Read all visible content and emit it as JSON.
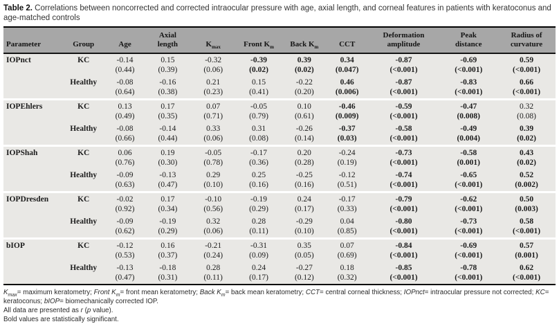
{
  "title": {
    "label": "Table 2.",
    "text": " Correlations between noncorrected and corrected intraocular pressure with age, axial length, and corneal features in patients with keratoconus and age-matched controls"
  },
  "colors": {
    "header_bg": "#a7a7a7",
    "row_bg": "#e9e8e5",
    "border": "#000000",
    "group_separator": "#ffffff"
  },
  "table": {
    "columns": [
      {
        "lines": [
          "Parameter"
        ],
        "sub": ""
      },
      {
        "lines": [
          "Group"
        ],
        "sub": ""
      },
      {
        "lines": [
          "Age"
        ],
        "sub": ""
      },
      {
        "lines": [
          "Axial",
          "length"
        ],
        "sub": ""
      },
      {
        "lines": [
          "K"
        ],
        "sub": "max"
      },
      {
        "lines": [
          "Front K"
        ],
        "sub": "m"
      },
      {
        "lines": [
          "Back K"
        ],
        "sub": "m"
      },
      {
        "lines": [
          "CCT"
        ],
        "sub": ""
      },
      {
        "lines": [
          "Deformation",
          "amplitude"
        ],
        "sub": ""
      },
      {
        "lines": [
          "Peak",
          "distance"
        ],
        "sub": ""
      },
      {
        "lines": [
          "Radius of",
          "curvature"
        ],
        "sub": ""
      }
    ],
    "groups": [
      {
        "parameter": "IOPnct",
        "rows": [
          {
            "group": "KC",
            "cells": [
              {
                "r": "-0.14",
                "p": "(0.44)",
                "bold": false
              },
              {
                "r": "0.15",
                "p": "(0.39)",
                "bold": false
              },
              {
                "r": "-0.32",
                "p": "(0.06)",
                "bold": false
              },
              {
                "r": "-0.39",
                "p": "(0.02)",
                "bold": true
              },
              {
                "r": "0.39",
                "p": "(0.02)",
                "bold": true
              },
              {
                "r": "0.34",
                "p": "(0.047)",
                "bold": true
              },
              {
                "r": "-0.87",
                "p": "(<0.001)",
                "bold": true
              },
              {
                "r": "-0.69",
                "p": "(<0.001)",
                "bold": true
              },
              {
                "r": "0.59",
                "p": "(<0.001)",
                "bold": true
              }
            ]
          },
          {
            "group": "Healthy",
            "cells": [
              {
                "r": "-0.08",
                "p": "(0.64)",
                "bold": false
              },
              {
                "r": "-0.16",
                "p": "(0.38)",
                "bold": false
              },
              {
                "r": "0.21",
                "p": "(0.23)",
                "bold": false
              },
              {
                "r": "0.15",
                "p": "(0.41)",
                "bold": false
              },
              {
                "r": "-0.22",
                "p": "(0.20)",
                "bold": false
              },
              {
                "r": "0.46",
                "p": "(0.006)",
                "bold": true
              },
              {
                "r": "-0.87",
                "p": "(<0.001)",
                "bold": true
              },
              {
                "r": "-0.83",
                "p": "(<0.001)",
                "bold": true
              },
              {
                "r": "0.66",
                "p": "(<0.001)",
                "bold": true
              }
            ]
          }
        ]
      },
      {
        "parameter": "IOPEhlers",
        "rows": [
          {
            "group": "KC",
            "cells": [
              {
                "r": "0.13",
                "p": "(0.49)",
                "bold": false
              },
              {
                "r": "0.17",
                "p": "(0.35)",
                "bold": false
              },
              {
                "r": "0.07",
                "p": "(0.71)",
                "bold": false
              },
              {
                "r": "-0.05",
                "p": "(0.79)",
                "bold": false
              },
              {
                "r": "0.10",
                "p": "(0.61)",
                "bold": false
              },
              {
                "r": "-0.46",
                "p": "(0.009)",
                "bold": true
              },
              {
                "r": "-0.59",
                "p": "(<0.001)",
                "bold": true
              },
              {
                "r": "-0.47",
                "p": "(0.008)",
                "bold": true
              },
              {
                "r": "0.32",
                "p": "(0.08)",
                "bold": false
              }
            ]
          },
          {
            "group": "Healthy",
            "cells": [
              {
                "r": "-0.08",
                "p": "(0.66)",
                "bold": false
              },
              {
                "r": "-0.14",
                "p": "(0.44)",
                "bold": false
              },
              {
                "r": "0.33",
                "p": "(0.06)",
                "bold": false
              },
              {
                "r": "0.31",
                "p": "(0.08)",
                "bold": false
              },
              {
                "r": "-0.26",
                "p": "(0.14)",
                "bold": false
              },
              {
                "r": "-0.37",
                "p": "(0.03)",
                "bold": true
              },
              {
                "r": "-0.58",
                "p": "(<0.001)",
                "bold": true
              },
              {
                "r": "-0.49",
                "p": "(0.004)",
                "bold": true
              },
              {
                "r": "0.39",
                "p": "(0.02)",
                "bold": true
              }
            ]
          }
        ]
      },
      {
        "parameter": "IOPShah",
        "rows": [
          {
            "group": "KC",
            "cells": [
              {
                "r": "0.06",
                "p": "(0.76)",
                "bold": false
              },
              {
                "r": "0.19",
                "p": "(0.30)",
                "bold": false
              },
              {
                "r": "-0.05",
                "p": "(0.78)",
                "bold": false
              },
              {
                "r": "-0.17",
                "p": "(0.36)",
                "bold": false
              },
              {
                "r": "0.20",
                "p": "(0.28)",
                "bold": false
              },
              {
                "r": "-0.24",
                "p": "(0.19)",
                "bold": false
              },
              {
                "r": "-0.73",
                "p": "(<0.001)",
                "bold": true
              },
              {
                "r": "-0.58",
                "p": "(0.001)",
                "bold": true
              },
              {
                "r": "0.43",
                "p": "(0.02)",
                "bold": true
              }
            ]
          },
          {
            "group": "Healthy",
            "cells": [
              {
                "r": "-0.09",
                "p": "(0.63)",
                "bold": false
              },
              {
                "r": "-0.13",
                "p": "(0.47)",
                "bold": false
              },
              {
                "r": "0.29",
                "p": "(0.10)",
                "bold": false
              },
              {
                "r": "0.25",
                "p": "(0.16)",
                "bold": false
              },
              {
                "r": "-0.25",
                "p": "(0.16)",
                "bold": false
              },
              {
                "r": "-0.12",
                "p": "(0.51)",
                "bold": false
              },
              {
                "r": "-0.74",
                "p": "(<0.001)",
                "bold": true
              },
              {
                "r": "-0.65",
                "p": "(<0.001)",
                "bold": true
              },
              {
                "r": "0.52",
                "p": "(0.002)",
                "bold": true
              }
            ]
          }
        ]
      },
      {
        "parameter": "IOPDresden",
        "rows": [
          {
            "group": "KC",
            "cells": [
              {
                "r": "-0.02",
                "p": "(0.92)",
                "bold": false
              },
              {
                "r": "0.17",
                "p": "(0.34)",
                "bold": false
              },
              {
                "r": "-0.10",
                "p": "(0.56)",
                "bold": false
              },
              {
                "r": "-0.19",
                "p": "(0.29)",
                "bold": false
              },
              {
                "r": "0.24",
                "p": "(0.17)",
                "bold": false
              },
              {
                "r": "-0.17",
                "p": "(0.33)",
                "bold": false
              },
              {
                "r": "-0.79",
                "p": "(<0.001)",
                "bold": true
              },
              {
                "r": "-0.62",
                "p": "(<0.001)",
                "bold": true
              },
              {
                "r": "0.50",
                "p": "(0.003)",
                "bold": true
              }
            ]
          },
          {
            "group": "Healthy",
            "cells": [
              {
                "r": "-0.09",
                "p": "(0.62)",
                "bold": false
              },
              {
                "r": "-0.19",
                "p": "(0.29)",
                "bold": false
              },
              {
                "r": "0.32",
                "p": "(0.06)",
                "bold": false
              },
              {
                "r": "0.28",
                "p": "(0.11)",
                "bold": false
              },
              {
                "r": "-0.29",
                "p": "(0.10)",
                "bold": false
              },
              {
                "r": "0.04",
                "p": "(0.85)",
                "bold": false
              },
              {
                "r": "-0.80",
                "p": "(<0.001)",
                "bold": true
              },
              {
                "r": "-0.73",
                "p": "(<0.001)",
                "bold": true
              },
              {
                "r": "0.58",
                "p": "(<0.001)",
                "bold": true
              }
            ]
          }
        ]
      },
      {
        "parameter": "bIOP",
        "rows": [
          {
            "group": "KC",
            "cells": [
              {
                "r": "-0.12",
                "p": "(0.53)",
                "bold": false
              },
              {
                "r": "0.16",
                "p": "(0.37)",
                "bold": false
              },
              {
                "r": "-0.21",
                "p": "(0.24)",
                "bold": false
              },
              {
                "r": "-0.31",
                "p": "(0.09)",
                "bold": false
              },
              {
                "r": "0.35",
                "p": "(0.05)",
                "bold": false
              },
              {
                "r": "0.07",
                "p": "(0.69)",
                "bold": false
              },
              {
                "r": "-0.84",
                "p": "(<0.001)",
                "bold": true
              },
              {
                "r": "-0.69",
                "p": "(<0.001)",
                "bold": true
              },
              {
                "r": "0.57",
                "p": "(0.001)",
                "bold": true
              }
            ]
          },
          {
            "group": "Healthy",
            "cells": [
              {
                "r": "-0.13",
                "p": "(0.47)",
                "bold": false
              },
              {
                "r": "-0.18",
                "p": "(0.31)",
                "bold": false
              },
              {
                "r": "0.28",
                "p": "(0.11)",
                "bold": false
              },
              {
                "r": "0.24",
                "p": "(0.17)",
                "bold": false
              },
              {
                "r": "-0.27",
                "p": "(0.12)",
                "bold": false
              },
              {
                "r": "0.18",
                "p": "(0.32)",
                "bold": false
              },
              {
                "r": "-0.85",
                "p": "(<0.001)",
                "bold": true
              },
              {
                "r": "-0.78",
                "p": "(<0.001)",
                "bold": true
              },
              {
                "r": "0.62",
                "p": "(<0.001)",
                "bold": true
              }
            ]
          }
        ]
      }
    ]
  },
  "footnotes": [
    [
      {
        "text": "K",
        "italic": true
      },
      {
        "text": "max",
        "italic": true,
        "sub": true
      },
      {
        "text": "= maximum keratometry; ",
        "italic": false
      },
      {
        "text": "Front K",
        "italic": true
      },
      {
        "text": "m",
        "italic": true,
        "sub": true
      },
      {
        "text": "= front mean keratometry; ",
        "italic": false
      },
      {
        "text": "Back K",
        "italic": true
      },
      {
        "text": "m",
        "italic": true,
        "sub": true
      },
      {
        "text": "= back mean keratometry; ",
        "italic": false
      },
      {
        "text": "CCT",
        "italic": true
      },
      {
        "text": "= central corneal thickness; ",
        "italic": false
      },
      {
        "text": "IOPnct",
        "italic": true
      },
      {
        "text": "= intraocular pressure not corrected; ",
        "italic": false
      },
      {
        "text": "KC",
        "italic": true
      },
      {
        "text": "= keratoconus; ",
        "italic": false
      },
      {
        "text": "bIOP",
        "italic": true
      },
      {
        "text": "= biomechanically corrected IOP.",
        "italic": false
      }
    ],
    [
      {
        "text": "All data are presented as ",
        "italic": false
      },
      {
        "text": "r",
        "italic": true
      },
      {
        "text": " (",
        "italic": false
      },
      {
        "text": "p",
        "italic": true
      },
      {
        "text": " value).",
        "italic": false
      }
    ],
    [
      {
        "text": "Bold values are statistically significant.",
        "italic": false
      }
    ]
  ]
}
